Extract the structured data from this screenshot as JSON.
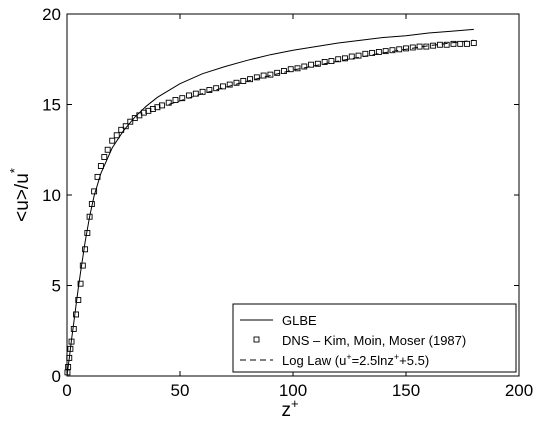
{
  "chart_data": {
    "type": "line",
    "xlabel": {
      "base": "z",
      "sup": "+"
    },
    "ylabel": {
      "base": "<u>/u",
      "sub": "*"
    },
    "xlim": [
      0,
      200
    ],
    "ylim": [
      0,
      20
    ],
    "xticks": [
      0,
      50,
      100,
      150,
      200
    ],
    "yticks": [
      0,
      5,
      10,
      15,
      20
    ],
    "grid": false,
    "legend_position": "bottom-right",
    "legend": [
      {
        "key": "glbe",
        "style": "solid",
        "parts": [
          {
            "t": "GLBE"
          }
        ]
      },
      {
        "key": "dns",
        "style": "square-marker",
        "parts": [
          {
            "t": "DNS – Kim, Moin, Moser (1987)"
          }
        ]
      },
      {
        "key": "loglaw",
        "style": "dashed",
        "parts": [
          {
            "t": "Log Law (u"
          },
          {
            "t": "+",
            "sup": true
          },
          {
            "t": "=2.5lnz"
          },
          {
            "t": "+",
            "sup": true
          },
          {
            "t": "+5.5)"
          }
        ]
      }
    ],
    "series": [
      {
        "key": "glbe",
        "style": "solid",
        "x": [
          0,
          1,
          2,
          3,
          4,
          5,
          6,
          8,
          10,
          12,
          15,
          20,
          25,
          30,
          35,
          40,
          50,
          60,
          70,
          80,
          90,
          100,
          110,
          120,
          130,
          140,
          150,
          160,
          170,
          180
        ],
        "y": [
          0,
          1.0,
          2.0,
          2.95,
          3.9,
          4.85,
          5.75,
          7.4,
          8.8,
          9.95,
          11.2,
          12.6,
          13.55,
          14.3,
          14.9,
          15.4,
          16.15,
          16.7,
          17.1,
          17.45,
          17.75,
          18.0,
          18.2,
          18.4,
          18.55,
          18.7,
          18.8,
          18.95,
          19.05,
          19.15
        ]
      },
      {
        "key": "dns",
        "style": "square-marker",
        "x": [
          0.2,
          0.5,
          1,
          1.5,
          2,
          3,
          4,
          5,
          6,
          7,
          8,
          9,
          10,
          11,
          12,
          13.5,
          15,
          16.5,
          18,
          20,
          22,
          24,
          26,
          28,
          30,
          32,
          34,
          36,
          38,
          40,
          42,
          45,
          48,
          51,
          54,
          57,
          60,
          63,
          66,
          69,
          72,
          75,
          78,
          81,
          84,
          87,
          90,
          93,
          96,
          99,
          102,
          105,
          108,
          111,
          114,
          117,
          120,
          123,
          126,
          129,
          132,
          135,
          138,
          141,
          144,
          147,
          150,
          153,
          156,
          159,
          162,
          165,
          168,
          171,
          174,
          177,
          180
        ],
        "y": [
          0.2,
          0.5,
          1.0,
          1.5,
          1.9,
          2.6,
          3.4,
          4.2,
          5.1,
          6.1,
          7.0,
          7.9,
          8.8,
          9.5,
          10.2,
          11.0,
          11.6,
          12.1,
          12.5,
          13.0,
          13.3,
          13.6,
          13.8,
          14.05,
          14.25,
          14.4,
          14.55,
          14.65,
          14.75,
          14.85,
          14.95,
          15.1,
          15.25,
          15.35,
          15.5,
          15.6,
          15.7,
          15.8,
          15.9,
          16.0,
          16.1,
          16.2,
          16.3,
          16.4,
          16.5,
          16.6,
          16.65,
          16.75,
          16.85,
          16.95,
          17.0,
          17.1,
          17.2,
          17.25,
          17.35,
          17.4,
          17.5,
          17.55,
          17.65,
          17.7,
          17.8,
          17.85,
          17.9,
          17.95,
          18.0,
          18.05,
          18.1,
          18.15,
          18.2,
          18.2,
          18.25,
          18.3,
          18.3,
          18.35,
          18.35,
          18.35,
          18.4
        ]
      },
      {
        "key": "loglaw",
        "style": "dashed",
        "x": [
          45,
          60,
          80,
          100,
          120,
          140,
          160,
          180
        ],
        "y": [
          15.0,
          15.6,
          16.3,
          16.9,
          17.4,
          17.85,
          18.25,
          18.55
        ]
      }
    ]
  }
}
